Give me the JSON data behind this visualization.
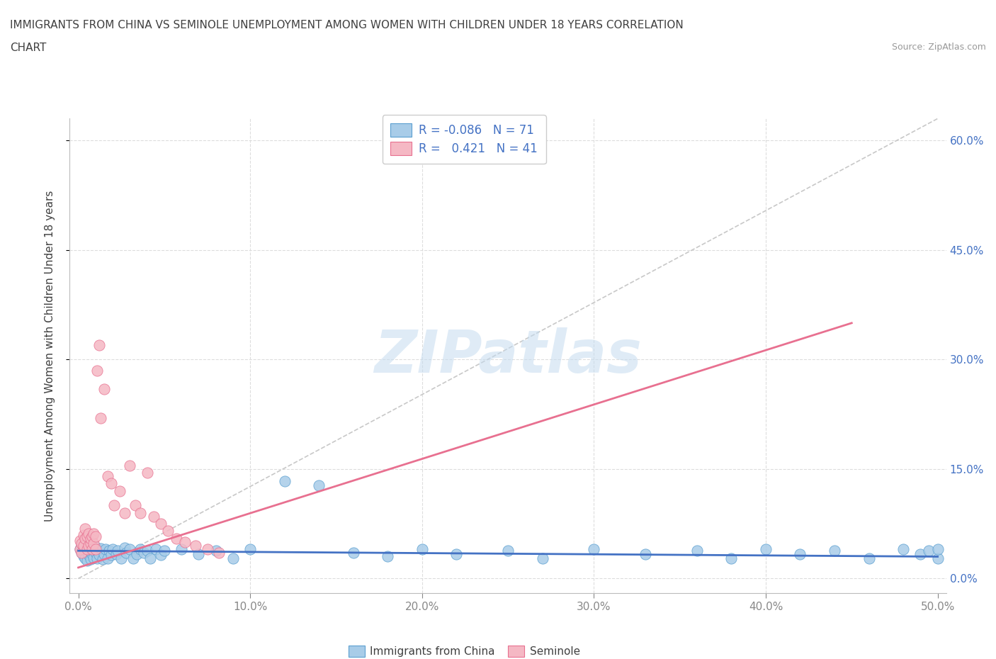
{
  "title_line1": "IMMIGRANTS FROM CHINA VS SEMINOLE UNEMPLOYMENT AMONG WOMEN WITH CHILDREN UNDER 18 YEARS CORRELATION",
  "title_line2": "CHART",
  "source_text": "Source: ZipAtlas.com",
  "xlim": [
    0.0,
    0.5
  ],
  "ylim": [
    0.0,
    0.63
  ],
  "x_ticks": [
    0.0,
    0.1,
    0.2,
    0.3,
    0.4,
    0.5
  ],
  "x_tick_labels": [
    "0.0%",
    "10.0%",
    "20.0%",
    "30.0%",
    "40.0%",
    "50.0%"
  ],
  "y_ticks": [
    0.0,
    0.15,
    0.3,
    0.45,
    0.6
  ],
  "y_tick_labels": [
    "0.0%",
    "15.0%",
    "30.0%",
    "45.0%",
    "60.0%"
  ],
  "watermark": "ZIPatlas",
  "color_blue_fill": "#A8CCE8",
  "color_blue_edge": "#5B9FD0",
  "color_pink_fill": "#F5B8C4",
  "color_pink_edge": "#E87090",
  "color_blue_line": "#4472C4",
  "color_pink_line": "#E87090",
  "color_dash": "#C8C8C8",
  "color_grid": "#DDDDDD",
  "color_text_blue": "#4472C4",
  "color_text_dark": "#404040",
  "color_source": "#999999",
  "blue_line_x0": 0.0,
  "blue_line_x1": 0.5,
  "blue_line_y0": 0.038,
  "blue_line_y1": 0.03,
  "pink_line_x0": 0.0,
  "pink_line_x1": 0.45,
  "pink_line_y0": 0.015,
  "pink_line_y1": 0.35,
  "dash_line_x0": 0.0,
  "dash_line_x1": 0.5,
  "dash_line_y0": 0.0,
  "dash_line_y1": 0.63,
  "blue_x": [
    0.001,
    0.002,
    0.002,
    0.003,
    0.003,
    0.004,
    0.004,
    0.005,
    0.005,
    0.006,
    0.006,
    0.007,
    0.007,
    0.008,
    0.008,
    0.009,
    0.009,
    0.01,
    0.01,
    0.011,
    0.011,
    0.012,
    0.013,
    0.014,
    0.015,
    0.016,
    0.017,
    0.018,
    0.019,
    0.02,
    0.022,
    0.023,
    0.025,
    0.027,
    0.028,
    0.03,
    0.032,
    0.034,
    0.036,
    0.038,
    0.04,
    0.042,
    0.045,
    0.048,
    0.05,
    0.06,
    0.07,
    0.08,
    0.09,
    0.1,
    0.12,
    0.14,
    0.16,
    0.18,
    0.2,
    0.22,
    0.25,
    0.27,
    0.3,
    0.33,
    0.36,
    0.38,
    0.4,
    0.42,
    0.44,
    0.46,
    0.48,
    0.49,
    0.495,
    0.5,
    0.5
  ],
  "blue_y": [
    0.04,
    0.035,
    0.045,
    0.03,
    0.042,
    0.038,
    0.028,
    0.025,
    0.048,
    0.032,
    0.04,
    0.027,
    0.045,
    0.033,
    0.038,
    0.029,
    0.04,
    0.035,
    0.043,
    0.028,
    0.038,
    0.032,
    0.041,
    0.027,
    0.033,
    0.04,
    0.028,
    0.038,
    0.032,
    0.04,
    0.033,
    0.038,
    0.028,
    0.042,
    0.035,
    0.04,
    0.028,
    0.033,
    0.04,
    0.035,
    0.038,
    0.028,
    0.04,
    0.032,
    0.038,
    0.04,
    0.033,
    0.038,
    0.028,
    0.04,
    0.133,
    0.128,
    0.035,
    0.03,
    0.04,
    0.033,
    0.038,
    0.028,
    0.04,
    0.033,
    0.038,
    0.028,
    0.04,
    0.033,
    0.038,
    0.028,
    0.04,
    0.033,
    0.038,
    0.028,
    0.04
  ],
  "pink_x": [
    0.001,
    0.001,
    0.002,
    0.002,
    0.003,
    0.003,
    0.004,
    0.004,
    0.005,
    0.005,
    0.006,
    0.006,
    0.007,
    0.007,
    0.008,
    0.008,
    0.009,
    0.009,
    0.01,
    0.01,
    0.011,
    0.012,
    0.013,
    0.015,
    0.017,
    0.019,
    0.021,
    0.024,
    0.027,
    0.03,
    0.033,
    0.036,
    0.04,
    0.044,
    0.048,
    0.052,
    0.057,
    0.062,
    0.068,
    0.075,
    0.082
  ],
  "pink_y": [
    0.04,
    0.052,
    0.035,
    0.048,
    0.06,
    0.045,
    0.055,
    0.068,
    0.04,
    0.058,
    0.045,
    0.062,
    0.048,
    0.055,
    0.04,
    0.058,
    0.048,
    0.062,
    0.04,
    0.058,
    0.285,
    0.32,
    0.22,
    0.26,
    0.14,
    0.13,
    0.1,
    0.12,
    0.09,
    0.155,
    0.1,
    0.09,
    0.145,
    0.085,
    0.075,
    0.065,
    0.055,
    0.05,
    0.045,
    0.04,
    0.035
  ]
}
